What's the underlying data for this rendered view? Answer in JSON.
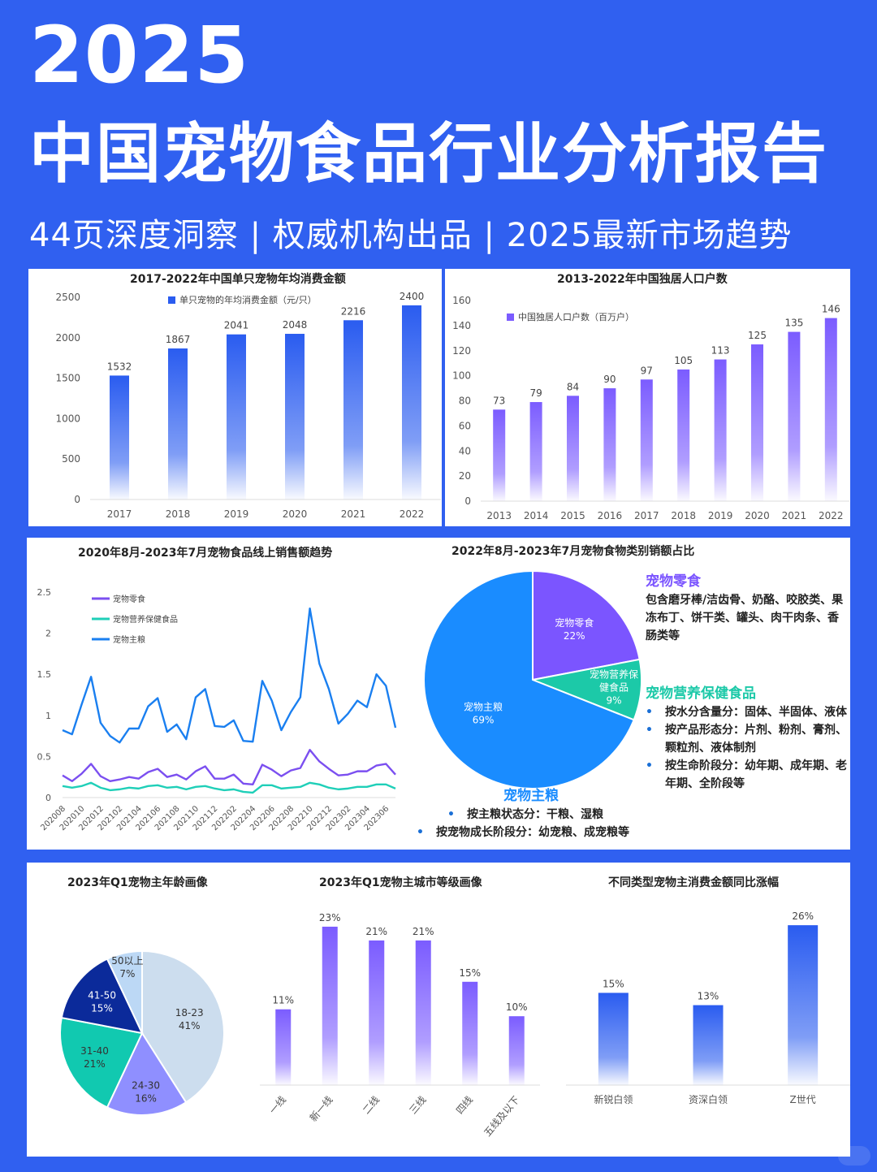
{
  "header": {
    "year": "2025",
    "title": "中国宠物食品行业分析报告",
    "subtitle": "44页深度洞察 | 权威机构出品 | 2025最新市场趋势"
  },
  "colors": {
    "background": "#3060f0",
    "blue_bar": "#2a5cf0",
    "purple_bar": "#7b5cff",
    "line_snack": "#7b4ff0",
    "line_health": "#1fcfb8",
    "line_staple": "#1a7ff0",
    "pie_staple": "#1a8cff",
    "pie_snack": "#7b55ff",
    "pie_health": "#1cc9a8"
  },
  "chart_data": [
    {
      "id": "spend_per_pet",
      "type": "bar",
      "title": "2017-2022年中国单只宠物年均消费金额",
      "legend": "单只宠物的年均消费金额（元/只）",
      "categories": [
        "2017",
        "2018",
        "2019",
        "2020",
        "2021",
        "2022"
      ],
      "values": [
        1532,
        1867,
        2041,
        2048,
        2216,
        2400
      ],
      "yticks": [
        "0",
        "500",
        "1000",
        "1500",
        "2000",
        "2500"
      ],
      "ylim": [
        0,
        2500
      ],
      "xlabel": "",
      "ylabel": ""
    },
    {
      "id": "single_households",
      "type": "bar",
      "title": "2013-2022年中国独居人口户数",
      "legend": "中国独居人口户数（百万户）",
      "categories": [
        "2013",
        "2014",
        "2015",
        "2016",
        "2017",
        "2018",
        "2019",
        "2020",
        "2021",
        "2022"
      ],
      "values": [
        73,
        79,
        84,
        90,
        97,
        105,
        113,
        125,
        135,
        146
      ],
      "yticks": [
        "0",
        "20",
        "40",
        "60",
        "80",
        "100",
        "120",
        "140",
        "160"
      ],
      "ylim": [
        0,
        160
      ],
      "xlabel": "",
      "ylabel": ""
    },
    {
      "id": "online_sales_trend",
      "type": "line",
      "title": "2020年8月-2023年7月宠物食品线上销售额趋势",
      "x_tick_labels": [
        "202008",
        "202010",
        "202012",
        "202102",
        "202104",
        "202106",
        "202108",
        "202110",
        "202112",
        "202202",
        "202204",
        "202206",
        "202208",
        "202210",
        "202212",
        "202302",
        "202304",
        "202306"
      ],
      "yticks": [
        "0",
        "0.5",
        "1",
        "1.5",
        "2",
        "2.5"
      ],
      "ylim": [
        0,
        2.5
      ],
      "legend_position": "top-left",
      "series": [
        {
          "name": "宠物零食",
          "values": [
            0.27,
            0.2,
            0.29,
            0.41,
            0.26,
            0.2,
            0.22,
            0.25,
            0.23,
            0.31,
            0.35,
            0.25,
            0.28,
            0.22,
            0.32,
            0.38,
            0.23,
            0.23,
            0.28,
            0.17,
            0.16,
            0.4,
            0.34,
            0.26,
            0.33,
            0.36,
            0.58,
            0.44,
            0.35,
            0.27,
            0.28,
            0.32,
            0.32,
            0.39,
            0.41,
            0.28
          ]
        },
        {
          "name": "宠物营养保健食品",
          "values": [
            0.14,
            0.12,
            0.14,
            0.18,
            0.12,
            0.09,
            0.1,
            0.12,
            0.11,
            0.14,
            0.15,
            0.12,
            0.13,
            0.1,
            0.13,
            0.14,
            0.11,
            0.09,
            0.1,
            0.07,
            0.06,
            0.15,
            0.15,
            0.11,
            0.12,
            0.13,
            0.18,
            0.16,
            0.12,
            0.1,
            0.11,
            0.13,
            0.13,
            0.16,
            0.16,
            0.11
          ]
        },
        {
          "name": "宠物主粮",
          "values": [
            0.82,
            0.77,
            1.13,
            1.47,
            0.91,
            0.75,
            0.67,
            0.84,
            0.84,
            1.11,
            1.21,
            0.8,
            0.89,
            0.71,
            1.22,
            1.32,
            0.87,
            0.86,
            0.94,
            0.69,
            0.68,
            1.42,
            1.18,
            0.82,
            1.04,
            1.22,
            2.3,
            1.63,
            1.32,
            0.9,
            1.02,
            1.18,
            1.1,
            1.5,
            1.36,
            0.85
          ]
        }
      ]
    },
    {
      "id": "category_share",
      "type": "pie",
      "title": "2022年8月-2023年7月宠物食物类别销额占比",
      "slices": [
        {
          "label": "宠物零食",
          "value": 22,
          "display": "22%"
        },
        {
          "label": "宠物营养保健食品",
          "label_lines": [
            "宠物营养保",
            "健食品"
          ],
          "value": 9,
          "display": "9%"
        },
        {
          "label": "宠物主粮",
          "value": 69,
          "display": "69%"
        }
      ]
    },
    {
      "id": "owner_age",
      "type": "pie",
      "title": "2023年Q1宠物主年龄画像",
      "slices": [
        {
          "label": "18-23",
          "value": 41,
          "display": "41%"
        },
        {
          "label": "24-30",
          "value": 16,
          "display": "16%"
        },
        {
          "label": "31-40",
          "value": 21,
          "display": "21%"
        },
        {
          "label": "41-50",
          "value": 15,
          "display": "15%"
        },
        {
          "label": "50以上",
          "value": 7,
          "display": "7%"
        }
      ]
    },
    {
      "id": "owner_city_tier",
      "type": "bar",
      "title": "2023年Q1宠物主城市等级画像",
      "categories": [
        "一线",
        "新一线",
        "二线",
        "三线",
        "四线",
        "五线及以下"
      ],
      "values": [
        11,
        23,
        21,
        21,
        15,
        10
      ],
      "value_labels": [
        "11%",
        "23%",
        "21%",
        "21%",
        "15%",
        "10%"
      ],
      "ylim": [
        0,
        25
      ]
    },
    {
      "id": "spend_growth_by_type",
      "type": "bar",
      "title": "不同类型宠物主消费金额同比涨幅",
      "categories": [
        "新锐白领",
        "资深白领",
        "Z世代"
      ],
      "values": [
        15,
        13,
        26
      ],
      "value_labels": [
        "15%",
        "13%",
        "26%"
      ],
      "ylim": [
        0,
        28
      ]
    }
  ],
  "notes": {
    "snack": {
      "heading": "宠物零食",
      "text": "包含磨牙棒/洁齿骨、奶酪、咬胶类、果冻布丁、饼干类、罐头、肉干肉条、香肠类等"
    },
    "health": {
      "heading": "宠物营养保健食品",
      "bullets": [
        "按水分含量分：固体、半固体、液体",
        "按产品形态分：片剂、粉剂、膏剂、颗粒剂、液体制剂",
        "按生命阶段分：幼年期、成年期、老年期、全阶段等"
      ]
    },
    "staple": {
      "heading": "宠物主粮",
      "bullets": [
        "按主粮状态分：干粮、湿粮",
        "按宠物成长阶段分：幼宠粮、成宠粮等"
      ]
    }
  }
}
